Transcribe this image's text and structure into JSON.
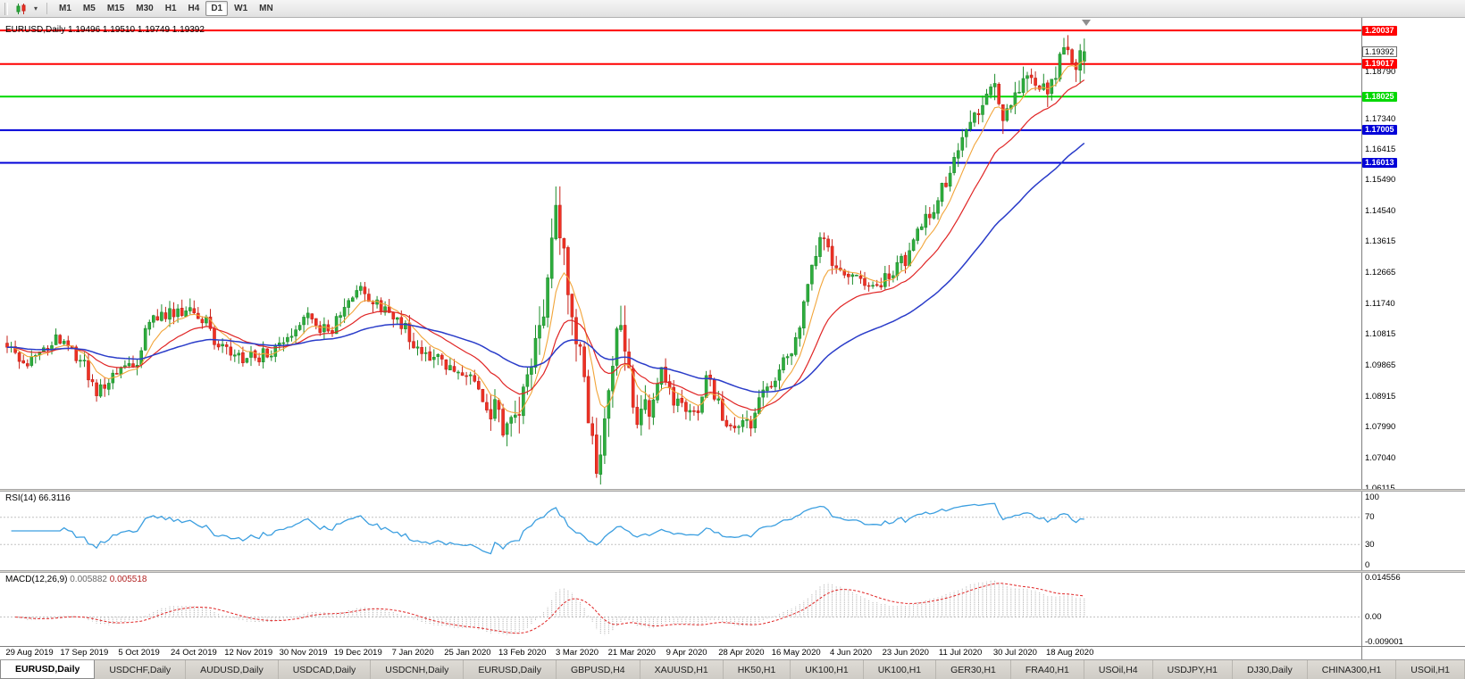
{
  "toolbar": {
    "timeframes": [
      {
        "label": "M1",
        "active": false
      },
      {
        "label": "M5",
        "active": false
      },
      {
        "label": "M15",
        "active": false
      },
      {
        "label": "M30",
        "active": false
      },
      {
        "label": "H1",
        "active": false
      },
      {
        "label": "H4",
        "active": false
      },
      {
        "label": "D1",
        "active": true
      },
      {
        "label": "W1",
        "active": false
      },
      {
        "label": "MN",
        "active": false
      }
    ]
  },
  "chart": {
    "title": "EURUSD,Daily 1.19496 1.19510 1.19749 1.19392",
    "symbol": "EURUSD",
    "period": "Daily",
    "current_price": "1.19392",
    "axis_ticks": [
      "1.18790",
      "1.17340",
      "1.16415",
      "1.15490",
      "1.14540",
      "1.13615",
      "1.12665",
      "1.11740",
      "1.10815",
      "1.09865",
      "1.08915",
      "1.07990",
      "1.07040",
      "1.06115"
    ],
    "hlines": [
      {
        "price": 1.20037,
        "label": "1.20037",
        "color": "#ff0000"
      },
      {
        "price": 1.19017,
        "label": "1.19017",
        "color": "#ff0000"
      },
      {
        "price": 1.18025,
        "label": "1.18025",
        "color": "#00d800"
      },
      {
        "price": 1.17005,
        "label": "1.17005",
        "color": "#0000d8"
      },
      {
        "price": 1.16013,
        "label": "1.16013",
        "color": "#0000d8"
      }
    ],
    "colors": {
      "up_fill": "#2eae3e",
      "up_stroke": "#1d8c2b",
      "down_fill": "#ef3124",
      "down_stroke": "#c6221a",
      "ma_fast": "#f2a53a",
      "ma_mid": "#e02525",
      "ma_slow": "#2a3cc9",
      "rsi_line": "#3c9fe0",
      "macd_hist": "#a8a8a8",
      "macd_signal": "#e02525"
    }
  },
  "rsi": {
    "label": "RSI(14)",
    "value": "66.3116",
    "levels": [
      "100",
      "70",
      "30",
      "0"
    ],
    "level_values": [
      100,
      70,
      30,
      0
    ]
  },
  "macd": {
    "label": "MACD(12,26,9)",
    "main_value": "0.005882",
    "signal_value": "0.005518",
    "levels": [
      "0.014556",
      "0.00",
      "-0.009001"
    ],
    "level_values": [
      0.014556,
      0,
      -0.009001
    ]
  },
  "dates": [
    "29 Aug 2019",
    "17 Sep 2019",
    "5 Oct 2019",
    "24 Oct 2019",
    "12 Nov 2019",
    "30 Nov 2019",
    "19 Dec 2019",
    "7 Jan 2020",
    "25 Jan 2020",
    "13 Feb 2020",
    "3 Mar 2020",
    "21 Mar 2020",
    "9 Apr 2020",
    "28 Apr 2020",
    "16 May 2020",
    "4 Jun 2020",
    "23 Jun 2020",
    "11 Jul 2020",
    "30 Jul 2020",
    "18 Aug 2020"
  ],
  "tabs": [
    {
      "label": "EURUSD,Daily",
      "active": true
    },
    {
      "label": "USDCHF,Daily",
      "active": false
    },
    {
      "label": "AUDUSD,Daily",
      "active": false
    },
    {
      "label": "USDCAD,Daily",
      "active": false
    },
    {
      "label": "USDCNH,Daily",
      "active": false
    },
    {
      "label": "EURUSD,Daily",
      "active": false
    },
    {
      "label": "GBPUSD,H4",
      "active": false
    },
    {
      "label": "XAUUSD,H1",
      "active": false
    },
    {
      "label": "HK50,H1",
      "active": false
    },
    {
      "label": "UK100,H1",
      "active": false
    },
    {
      "label": "UK100,H1",
      "active": false
    },
    {
      "label": "GER30,H1",
      "active": false
    },
    {
      "label": "FRA40,H1",
      "active": false
    },
    {
      "label": "USOil,H4",
      "active": false
    },
    {
      "label": "USDJPY,H1",
      "active": false
    },
    {
      "label": "DJ30,Daily",
      "active": false
    },
    {
      "label": "CHINA300,H1",
      "active": false
    },
    {
      "label": "USOil,H1",
      "active": false
    }
  ],
  "chart_data": {
    "type": "candlestick",
    "symbol": "EURUSD",
    "timeframe": "Daily",
    "bars": 266,
    "last_close": 1.19392,
    "y_range": [
      1.061,
      1.2042
    ],
    "x_axis_labels": [
      "29 Aug 2019",
      "17 Sep 2019",
      "5 Oct 2019",
      "24 Oct 2019",
      "12 Nov 2019",
      "30 Nov 2019",
      "19 Dec 2019",
      "7 Jan 2020",
      "25 Jan 2020",
      "13 Feb 2020",
      "3 Mar 2020",
      "21 Mar 2020",
      "9 Apr 2020",
      "28 Apr 2020",
      "16 May 2020",
      "4 Jun 2020",
      "23 Jun 2020",
      "11 Jul 2020",
      "30 Jul 2020",
      "18 Aug 2020"
    ],
    "horizontal_levels": [
      1.20037,
      1.19017,
      1.18025,
      1.17005,
      1.16013
    ],
    "price_path": [
      [
        0,
        1.1055
      ],
      [
        4,
        1.099
      ],
      [
        8,
        1.104
      ],
      [
        14,
        1.107
      ],
      [
        18,
        1.1
      ],
      [
        22,
        1.09
      ],
      [
        26,
        1.096
      ],
      [
        31,
        1.0985
      ],
      [
        36,
        1.113
      ],
      [
        41,
        1.1145
      ],
      [
        44,
        1.116
      ],
      [
        48,
        1.1125
      ],
      [
        52,
        1.104
      ],
      [
        57,
        1.1005
      ],
      [
        63,
        1.1015
      ],
      [
        68,
        1.1075
      ],
      [
        74,
        1.1135
      ],
      [
        79,
        1.109
      ],
      [
        84,
        1.1175
      ],
      [
        87,
        1.1215
      ],
      [
        92,
        1.116
      ],
      [
        97,
        1.1105
      ],
      [
        102,
        1.103
      ],
      [
        108,
        1.0995
      ],
      [
        113,
        1.0945
      ],
      [
        119,
        1.084
      ],
      [
        123,
        1.079
      ],
      [
        126,
        1.087
      ],
      [
        129,
        1.099
      ],
      [
        132,
        1.114
      ],
      [
        135,
        1.144
      ],
      [
        137,
        1.13
      ],
      [
        139,
        1.114
      ],
      [
        141,
        1.1
      ],
      [
        143,
        1.086
      ],
      [
        145,
        1.068
      ],
      [
        147,
        1.079
      ],
      [
        149,
        1.103
      ],
      [
        151,
        1.108
      ],
      [
        153,
        1.096
      ],
      [
        155,
        1.082
      ],
      [
        158,
        1.088
      ],
      [
        161,
        1.096
      ],
      [
        164,
        1.088
      ],
      [
        167,
        1.0845
      ],
      [
        170,
        1.083
      ],
      [
        172,
        1.095
      ],
      [
        175,
        1.088
      ],
      [
        177,
        1.08
      ],
      [
        180,
        1.081
      ],
      [
        183,
        1.0805
      ],
      [
        186,
        1.089
      ],
      [
        189,
        1.0945
      ],
      [
        192,
        1.1015
      ],
      [
        195,
        1.1115
      ],
      [
        198,
        1.129
      ],
      [
        201,
        1.137
      ],
      [
        203,
        1.13
      ],
      [
        206,
        1.124
      ],
      [
        209,
        1.1255
      ],
      [
        212,
        1.122
      ],
      [
        215,
        1.124
      ],
      [
        218,
        1.127
      ],
      [
        221,
        1.131
      ],
      [
        224,
        1.139
      ],
      [
        227,
        1.144
      ],
      [
        230,
        1.152
      ],
      [
        233,
        1.16
      ],
      [
        236,
        1.172
      ],
      [
        239,
        1.1775
      ],
      [
        241,
        1.184
      ],
      [
        243,
        1.1865
      ],
      [
        245,
        1.176
      ],
      [
        247,
        1.1785
      ],
      [
        249,
        1.184
      ],
      [
        251,
        1.188
      ],
      [
        253,
        1.185
      ],
      [
        255,
        1.1815
      ],
      [
        257,
        1.183
      ],
      [
        259,
        1.1905
      ],
      [
        261,
        1.1965
      ],
      [
        263,
        1.191
      ],
      [
        265,
        1.19392
      ]
    ],
    "volatility_zones": [
      [
        119,
        158,
        2.2
      ],
      [
        198,
        204,
        1.3
      ],
      [
        236,
        265,
        1.45
      ]
    ],
    "indicators": {
      "rsi": {
        "period": 14,
        "last": 66.3116,
        "scale": [
          0,
          100
        ],
        "levels": [
          30,
          70
        ]
      },
      "macd": {
        "fast": 12,
        "slow": 26,
        "signal": 9,
        "last_main": 0.005882,
        "last_signal": 0.005518,
        "scale": [
          -0.009001,
          0.014556
        ]
      },
      "moving_averages": [
        {
          "type": "ema",
          "period": 8,
          "color": "#f2a53a"
        },
        {
          "type": "ema",
          "period": 21,
          "color": "#e02525"
        },
        {
          "type": "ema",
          "period": 55,
          "color": "#2a3cc9"
        }
      ]
    }
  }
}
